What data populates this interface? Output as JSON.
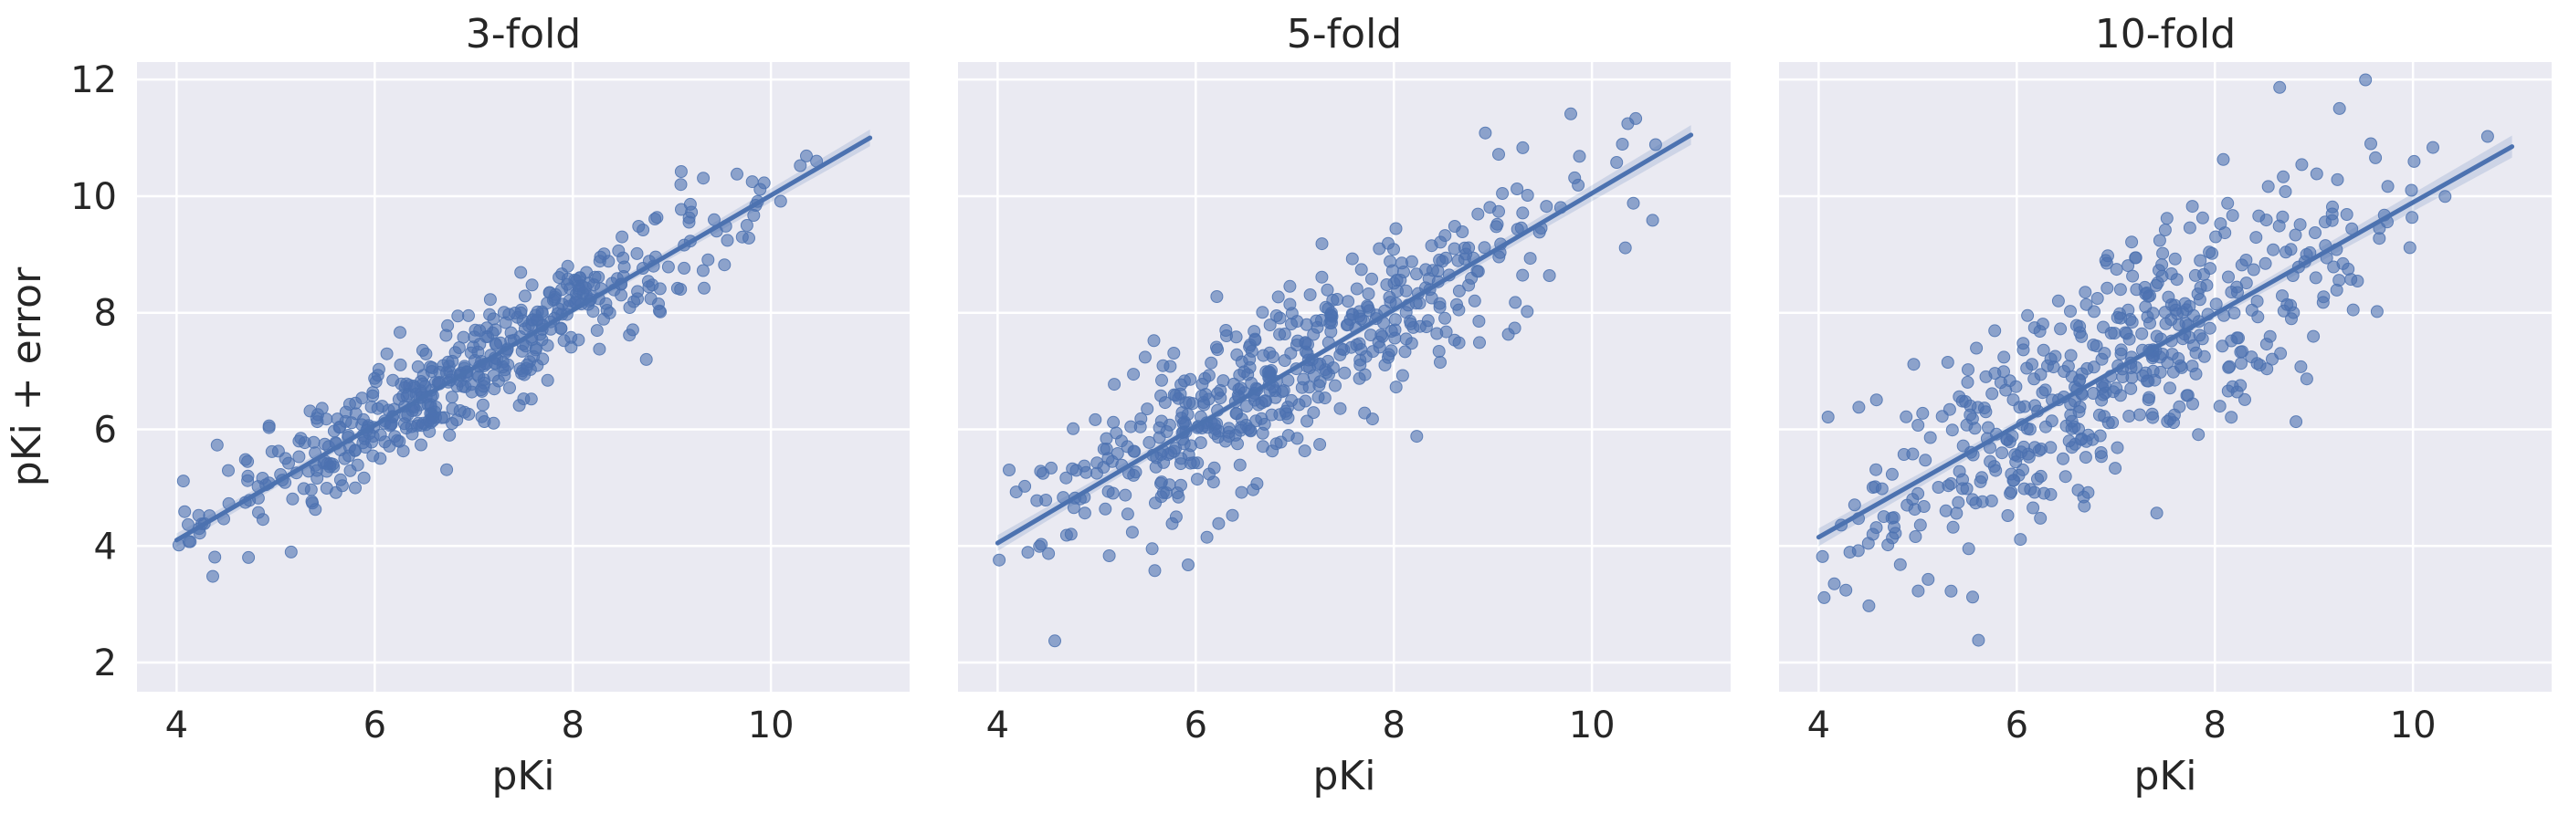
{
  "figure": {
    "ylabel": "pKi + error"
  },
  "style": {
    "panel_bg": "#eaeaf2",
    "grid": "#ffffff",
    "point_color": "#4c72b0",
    "line_color": "#4c72b0",
    "text_color": "#262626"
  },
  "chart_data": [
    {
      "type": "scatter",
      "title": "3-fold",
      "xlabel": "pKi",
      "ylabel": "pKi + error",
      "xlim": [
        3.6,
        11.4
      ],
      "ylim": [
        1.5,
        12.3
      ],
      "xticks": [
        4,
        6,
        8,
        10
      ],
      "yticks": [
        2,
        4,
        6,
        8,
        10,
        12
      ],
      "grid": true,
      "noise_sd": 0.45,
      "n_points": 500,
      "regression": {
        "x": [
          4,
          11
        ],
        "y": [
          4.1,
          11.0
        ]
      }
    },
    {
      "type": "scatter",
      "title": "5-fold",
      "xlabel": "pKi",
      "ylabel": "",
      "xlim": [
        3.6,
        11.4
      ],
      "ylim": [
        1.5,
        12.3
      ],
      "xticks": [
        4,
        6,
        8,
        10
      ],
      "yticks": [
        2,
        4,
        6,
        8,
        10,
        12
      ],
      "grid": true,
      "noise_sd": 0.75,
      "n_points": 500,
      "regression": {
        "x": [
          4,
          11
        ],
        "y": [
          4.05,
          11.05
        ]
      }
    },
    {
      "type": "scatter",
      "title": "10-fold",
      "xlabel": "pKi",
      "ylabel": "",
      "xlim": [
        3.6,
        11.4
      ],
      "ylim": [
        1.5,
        12.3
      ],
      "xticks": [
        4,
        6,
        8,
        10
      ],
      "yticks": [
        2,
        4,
        6,
        8,
        10,
        12
      ],
      "grid": true,
      "noise_sd": 1.0,
      "n_points": 500,
      "regression": {
        "x": [
          4,
          11
        ],
        "y": [
          4.15,
          10.85
        ]
      }
    }
  ]
}
